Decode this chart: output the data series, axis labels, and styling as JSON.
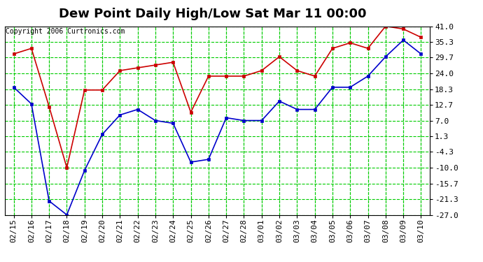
{
  "title": "Dew Point Daily High/Low Sat Mar 11 00:00",
  "copyright": "Copyright 2006 Curtronics.com",
  "x_labels": [
    "02/15",
    "02/16",
    "02/17",
    "02/18",
    "02/19",
    "02/20",
    "02/21",
    "02/22",
    "02/23",
    "02/24",
    "02/25",
    "02/26",
    "02/27",
    "02/28",
    "03/01",
    "03/02",
    "03/03",
    "03/04",
    "03/05",
    "03/06",
    "03/07",
    "03/08",
    "03/09",
    "03/10"
  ],
  "high_values": [
    31,
    33,
    12,
    -10,
    18,
    18,
    25,
    26,
    27,
    28,
    10,
    23,
    23,
    23,
    25,
    30,
    25,
    23,
    33,
    35,
    33,
    41,
    40,
    37
  ],
  "low_values": [
    19,
    13,
    -22,
    -27,
    -11,
    2,
    9,
    11,
    7,
    6,
    -8,
    -7,
    8,
    7,
    7,
    14,
    11,
    11,
    19,
    19,
    23,
    30,
    36,
    31
  ],
  "y_ticks": [
    41.0,
    35.3,
    29.7,
    24.0,
    18.3,
    12.7,
    7.0,
    1.3,
    -4.3,
    -10.0,
    -15.7,
    -21.3,
    -27.0
  ],
  "y_min": -27.0,
  "y_max": 41.0,
  "high_color": "#cc0000",
  "low_color": "#0000cc",
  "bg_color": "#ffffff",
  "plot_bg_color": "#ffffff",
  "grid_color": "#00cc00",
  "grid_color_dark": "#008800",
  "title_fontsize": 13,
  "copyright_fontsize": 7,
  "tick_fontsize": 8
}
